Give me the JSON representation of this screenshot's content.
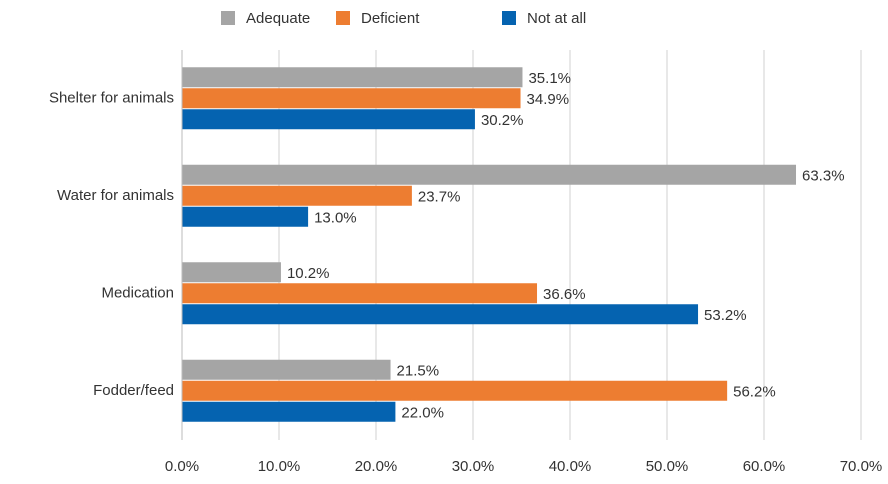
{
  "chart_data": {
    "type": "hbar",
    "categories": [
      "Shelter for animals",
      "Water for animals",
      "Medication",
      "Fodder/feed"
    ],
    "series": [
      {
        "name": "Adequate",
        "color": "#a5a5a5",
        "values": [
          35.1,
          63.3,
          10.2,
          21.5
        ],
        "value_labels": [
          "35.1%",
          "63.3%",
          "10.2%",
          "21.5%"
        ]
      },
      {
        "name": "Deficient",
        "color": "#ed7d31",
        "values": [
          34.9,
          23.7,
          36.6,
          56.2
        ],
        "value_labels": [
          "34.9%",
          "23.7%",
          "36.6%",
          "56.2%"
        ]
      },
      {
        "name": "Not at all",
        "color": "#0563b0",
        "values": [
          30.2,
          13.0,
          53.2,
          22.0
        ],
        "value_labels": [
          "30.2%",
          "13.0%",
          "53.2%",
          "22.0%"
        ]
      }
    ],
    "xlim": [
      0,
      70
    ],
    "xticks": [
      {
        "value": 0,
        "label": "0.0%"
      },
      {
        "value": 10,
        "label": "10.0%"
      },
      {
        "value": 20,
        "label": "20.0%"
      },
      {
        "value": 30,
        "label": "30.0%"
      },
      {
        "value": 40,
        "label": "40.0%"
      },
      {
        "value": 50,
        "label": "50.0%"
      },
      {
        "value": 60,
        "label": "60.0%"
      },
      {
        "value": 70,
        "label": "70.0%"
      }
    ],
    "grid": true,
    "legend": "top"
  }
}
